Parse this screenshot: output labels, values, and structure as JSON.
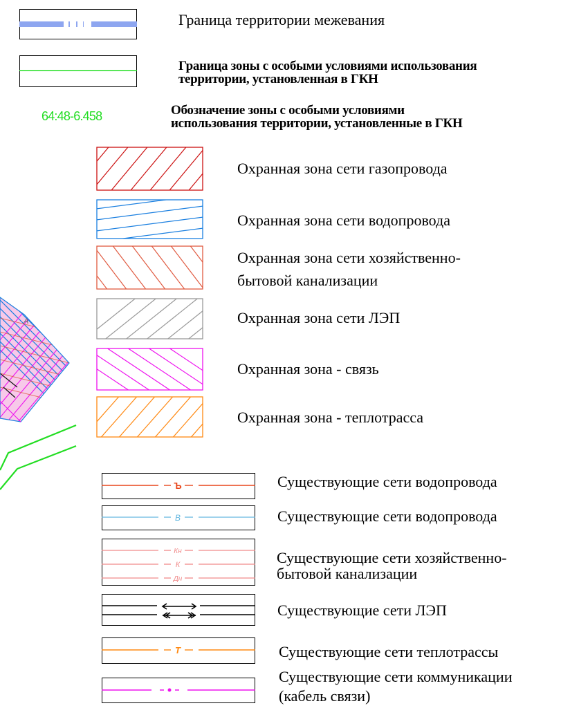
{
  "legend": {
    "boundary": {
      "label": "Граница территории межевания",
      "color": "#8ea6f0"
    },
    "gkn_zone": {
      "label_1": "Граница зоны с особыми условиями использования",
      "label_2": "территории, установленная в ГКН",
      "color": "#22dd22"
    },
    "zone_code": {
      "code": "64:48-6.458",
      "label_1": "Обозначение зоны с особыми условиями",
      "label_2": "использования территории, установленные в ГКН",
      "color": "#22dd22"
    },
    "zones": [
      {
        "label": "Охранная зона сети газопровода",
        "color": "#cc1111",
        "icon": "hatch-forward"
      },
      {
        "label": "Охранная зона сети водопровода",
        "color": "#1a7fe0",
        "icon": "hatch-shallow"
      },
      {
        "label_1": "Охранная зона сети хозяйственно-",
        "label_2": "бытовой канализации",
        "color": "#e05a40",
        "icon": "hatch-back"
      },
      {
        "label": "Охранная зона сети ЛЭП",
        "color": "#999999",
        "icon": "hatch-forward"
      },
      {
        "label": "Охранная зона - связь",
        "color": "#ee11ee",
        "icon": "hatch-back-shallow"
      },
      {
        "label": "Охранная зона - теплотрасса",
        "color": "#ff8811",
        "icon": "hatch-forward"
      }
    ],
    "networks": [
      {
        "label": "Существующие сети водопровода",
        "color": "#e8451a",
        "symbol": "Ъ"
      },
      {
        "label": "Существующие сети водопровода",
        "color": "#66b8e0",
        "symbol": "В"
      },
      {
        "label_1": "Существующие сети хозяйственно-",
        "label_2": "бытовой канализации",
        "color": "#f08a8a",
        "symbols": [
          "Кн",
          "К",
          "Дн"
        ]
      },
      {
        "label": "Существующие сети ЛЭП",
        "color": "#000000",
        "icon": "arrows"
      },
      {
        "label": "Существующие сети теплотрассы",
        "color": "#ff8811",
        "symbol": "Т"
      },
      {
        "label_1": "Существующие сети коммуникации",
        "label_2": "(кабель связи)",
        "color": "#ee11ee",
        "icon": "dot"
      }
    ]
  },
  "map_fragment": {
    "mark": "A"
  }
}
